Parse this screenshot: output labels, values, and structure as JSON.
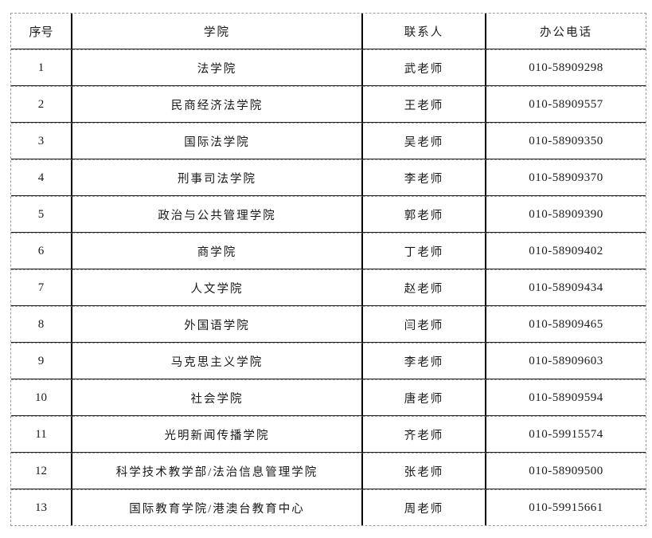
{
  "table": {
    "headers": {
      "seq": "序号",
      "college": "学院",
      "contact": "联系人",
      "phone": "办公电话"
    },
    "rows": [
      {
        "seq": "1",
        "college": "法学院",
        "contact": "武老师",
        "phone": "010-58909298"
      },
      {
        "seq": "2",
        "college": "民商经济法学院",
        "contact": "王老师",
        "phone": "010-58909557"
      },
      {
        "seq": "3",
        "college": "国际法学院",
        "contact": "吴老师",
        "phone": "010-58909350"
      },
      {
        "seq": "4",
        "college": "刑事司法学院",
        "contact": "李老师",
        "phone": "010-58909370"
      },
      {
        "seq": "5",
        "college": "政治与公共管理学院",
        "contact": "郭老师",
        "phone": "010-58909390"
      },
      {
        "seq": "6",
        "college": "商学院",
        "contact": "丁老师",
        "phone": "010-58909402"
      },
      {
        "seq": "7",
        "college": "人文学院",
        "contact": "赵老师",
        "phone": "010-58909434"
      },
      {
        "seq": "8",
        "college": "外国语学院",
        "contact": "闫老师",
        "phone": "010-58909465"
      },
      {
        "seq": "9",
        "college": "马克思主义学院",
        "contact": "李老师",
        "phone": "010-58909603"
      },
      {
        "seq": "10",
        "college": "社会学院",
        "contact": "唐老师",
        "phone": "010-58909594"
      },
      {
        "seq": "11",
        "college": "光明新闻传播学院",
        "contact": "齐老师",
        "phone": "010-59915574"
      },
      {
        "seq": "12",
        "college": "科学技术教学部/法治信息管理学院",
        "contact": "张老师",
        "phone": "010-58909500"
      },
      {
        "seq": "13",
        "college": "国际教育学院/港澳台教育中心",
        "contact": "周老师",
        "phone": "010-59915661"
      }
    ],
    "colors": {
      "text": "#1a1a1a",
      "grid_vertical": "#000000",
      "grid_horizontal_solid": "#1c1c1c",
      "grid_horizontal_dashed": "#a8a8a8",
      "outer_border": "#9a9a9a",
      "background": "#ffffff"
    }
  }
}
